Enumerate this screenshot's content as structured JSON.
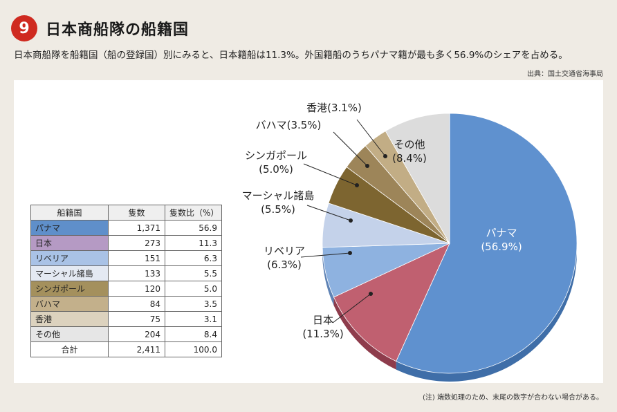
{
  "header": {
    "number": "9",
    "title": "日本商船隊の船籍国",
    "subtitle": "日本商船隊を船籍国（船の登録国）別にみると、日本籍船は11.3%。外国籍船のうちパナマ籍が最も多く56.9%のシェアを占める。",
    "source": "出典：国土交通省海事局"
  },
  "table": {
    "headers": [
      "船籍国",
      "隻数",
      "隻数比（%）"
    ],
    "rows": [
      {
        "name": "パナマ",
        "count": "1,371",
        "pct": "56.9",
        "color": "#5f8fca"
      },
      {
        "name": "日本",
        "count": "273",
        "pct": "11.3",
        "color": "#b59ac4"
      },
      {
        "name": "リベリア",
        "count": "151",
        "pct": "6.3",
        "color": "#a9c2e6"
      },
      {
        "name": "マーシャル諸島",
        "count": "133",
        "pct": "5.5",
        "color": "#e4e9f2"
      },
      {
        "name": "シンガポール",
        "count": "120",
        "pct": "5.0",
        "color": "#a4905d"
      },
      {
        "name": "バハマ",
        "count": "84",
        "pct": "3.5",
        "color": "#c3b08b"
      },
      {
        "name": "香港",
        "count": "75",
        "pct": "3.1",
        "color": "#dcd2be"
      },
      {
        "name": "その他",
        "count": "204",
        "pct": "8.4",
        "color": "#e6e6e6"
      }
    ],
    "total": {
      "name": "合計",
      "count": "2,411",
      "pct": "100.0"
    }
  },
  "chart_data": {
    "type": "pie",
    "slices": [
      {
        "label": "パナマ",
        "value": 56.9,
        "text": "(56.9%)",
        "color": "#5f91cf",
        "side": "#3f6ea8"
      },
      {
        "label": "日本",
        "value": 11.3,
        "text": "(11.3%)",
        "color": "#c06070",
        "side": "#8e3c4c"
      },
      {
        "label": "リベリア",
        "value": 6.3,
        "text": "(6.3%)",
        "color": "#8eb2e0",
        "side": "#5f83b5"
      },
      {
        "label": "マーシャル諸島",
        "value": 5.5,
        "text": "(5.5%)",
        "color": "#c4d2ea",
        "side": "#8e9dba"
      },
      {
        "label": "シンガポール",
        "value": 5.0,
        "text": "(5.0%)",
        "color": "#7d6530",
        "side": "#5a4820"
      },
      {
        "label": "バハマ",
        "value": 3.5,
        "text": "(3.5%)",
        "color": "#9d8559",
        "side": "#73603d"
      },
      {
        "label": "香港",
        "value": 3.1,
        "text": "(3.1%)",
        "color": "#c2ad85",
        "side": "#927f5d"
      },
      {
        "label": "その他",
        "value": 8.4,
        "text": "(8.4%)",
        "color": "#dcdcdc",
        "side": "#a8a8a8"
      }
    ]
  },
  "footnote": "(注) 端数処理のため、末尾の数字が合わない場合がある。"
}
